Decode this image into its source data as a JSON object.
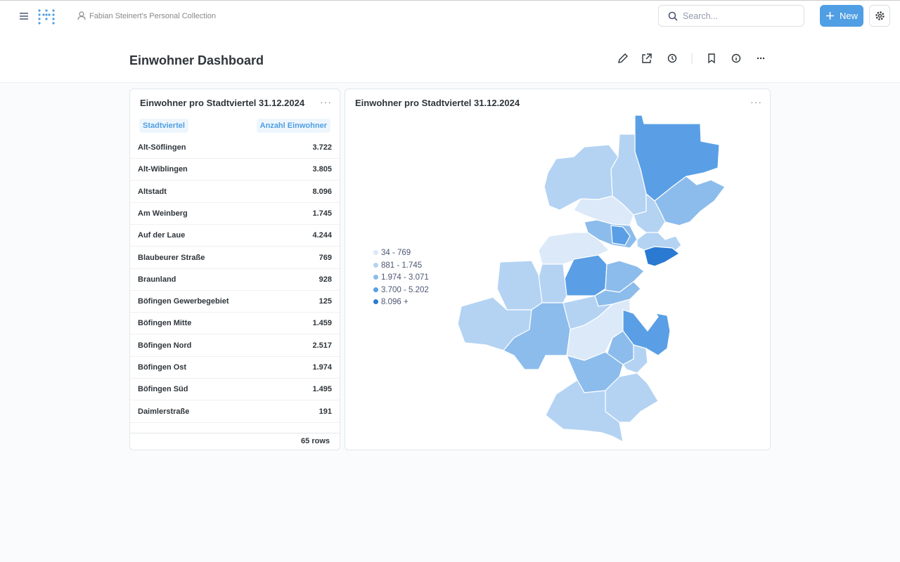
{
  "nav": {
    "collection": "Fabian Steinert's Personal Collection",
    "search_placeholder": "Search...",
    "new_button": "New"
  },
  "dashboard": {
    "title": "Einwohner Dashboard"
  },
  "table_card": {
    "title": "Einwohner pro Stadtviertel 31.12.2024",
    "columns": [
      "Stadtviertel",
      "Anzahl Einwohner"
    ],
    "rows": [
      [
        "Alt-Söflingen",
        "3.722"
      ],
      [
        "Alt-Wiblingen",
        "3.805"
      ],
      [
        "Altstadt",
        "8.096"
      ],
      [
        "Am Weinberg",
        "1.745"
      ],
      [
        "Auf der Laue",
        "4.244"
      ],
      [
        "Blaubeurer Straße",
        "769"
      ],
      [
        "Braunland",
        "928"
      ],
      [
        "Böfingen Gewerbegebiet",
        "125"
      ],
      [
        "Böfingen Mitte",
        "1.459"
      ],
      [
        "Böfingen Nord",
        "2.517"
      ],
      [
        "Böfingen Ost",
        "1.974"
      ],
      [
        "Böfingen Süd",
        "1.495"
      ],
      [
        "Daimlerstraße",
        "191"
      ]
    ],
    "row_count": "65 rows"
  },
  "map_card": {
    "title": "Einwohner pro Stadtviertel 31.12.2024",
    "legend": [
      {
        "label": "34 - 769",
        "color": "#dbe9f8"
      },
      {
        "label": "881 - 1.745",
        "color": "#b4d3f3"
      },
      {
        "label": "1.974 - 3.071",
        "color": "#8cbcec"
      },
      {
        "label": "3.700 - 5.202",
        "color": "#5a9fe5"
      },
      {
        "label": "8.096 +",
        "color": "#2a7ad2"
      }
    ]
  }
}
